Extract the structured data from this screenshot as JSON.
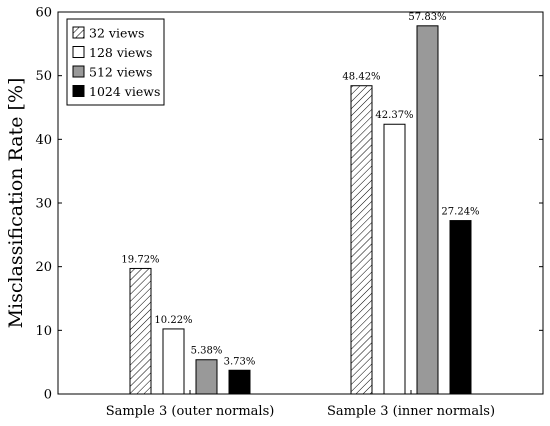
{
  "chart_data": {
    "type": "bar",
    "categories": [
      "Sample 3 (outer normals)",
      "Sample 3 (inner normals)"
    ],
    "series": [
      {
        "name": "32 views",
        "values": [
          19.72,
          48.42
        ],
        "labels": [
          "19.72%",
          "48.42%"
        ],
        "pattern": "hatch",
        "color": "#ffffff"
      },
      {
        "name": "128 views",
        "values": [
          10.22,
          42.37
        ],
        "labels": [
          "10.22%",
          "42.37%"
        ],
        "pattern": "solid",
        "color": "#ffffff"
      },
      {
        "name": "512 views",
        "values": [
          5.38,
          57.83
        ],
        "labels": [
          "5.38%",
          "57.83%"
        ],
        "pattern": "solid",
        "color": "#999999"
      },
      {
        "name": "1024 views",
        "values": [
          3.73,
          27.24
        ],
        "labels": [
          "3.73%",
          "27.24%"
        ],
        "pattern": "solid",
        "color": "#000000"
      }
    ],
    "ylabel": "Misclassification Rate [%]",
    "xlabel": "",
    "ylim": [
      0,
      60
    ],
    "yticks": [
      "0",
      "10",
      "20",
      "30",
      "40",
      "50",
      "60"
    ],
    "legend_position": "top-left",
    "grid": false
  }
}
